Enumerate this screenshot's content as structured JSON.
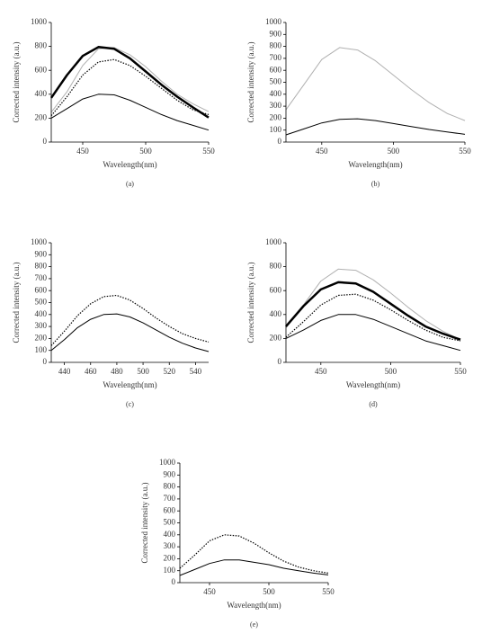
{
  "chart_data": [
    {
      "type": "line",
      "caption": "(a)",
      "xlabel": "Wavelength(nm)",
      "ylabel": "Corrected intensity (a.u.)",
      "x": [
        425,
        437.5,
        450,
        462.5,
        475,
        487.5,
        500,
        512.5,
        525,
        537.5,
        550
      ],
      "xlim": [
        425,
        550
      ],
      "xticks": [
        450,
        500,
        550
      ],
      "ylim": [
        0,
        1000
      ],
      "yticks": [
        0,
        200,
        400,
        600,
        800,
        1000
      ],
      "series": [
        {
          "color": "#b0b0b0",
          "line_style": "solid",
          "line_width": 1,
          "values": [
            250,
            420,
            640,
            780,
            790,
            730,
            630,
            510,
            400,
            320,
            255
          ]
        },
        {
          "color": "#000000",
          "line_style": "solid",
          "line_width": 2.5,
          "values": [
            370,
            560,
            720,
            795,
            780,
            700,
            590,
            480,
            380,
            290,
            205
          ]
        },
        {
          "color": "#000000",
          "line_style": "dotted",
          "line_width": 1.2,
          "values": [
            220,
            380,
            560,
            670,
            690,
            640,
            550,
            450,
            350,
            270,
            230
          ]
        },
        {
          "color": "#000000",
          "line_style": "solid",
          "line_width": 1,
          "values": [
            200,
            280,
            360,
            400,
            395,
            350,
            290,
            230,
            180,
            140,
            100
          ]
        }
      ]
    },
    {
      "type": "line",
      "caption": "(b)",
      "xlabel": "Wavelength(nm)",
      "ylabel": "Corrected intensity (a.u.)",
      "x": [
        425,
        437.5,
        450,
        462.5,
        475,
        487.5,
        500,
        512.5,
        525,
        537.5,
        550
      ],
      "xlim": [
        425,
        550
      ],
      "xticks": [
        450,
        500,
        550
      ],
      "ylim": [
        0,
        1000
      ],
      "yticks": [
        0,
        100,
        200,
        300,
        400,
        500,
        600,
        700,
        800,
        900,
        1000
      ],
      "series": [
        {
          "color": "#b0b0b0",
          "line_style": "solid",
          "line_width": 1,
          "values": [
            270,
            480,
            690,
            790,
            770,
            680,
            560,
            440,
            330,
            240,
            180
          ]
        },
        {
          "color": "#000000",
          "line_style": "solid",
          "line_width": 1,
          "values": [
            60,
            110,
            160,
            190,
            195,
            180,
            155,
            130,
            105,
            85,
            65
          ]
        }
      ]
    },
    {
      "type": "line",
      "caption": "(c)",
      "xlabel": "Wavelength(nm)",
      "ylabel": "Corrected intensity (a.u.)",
      "x": [
        430,
        440,
        450,
        460,
        470,
        480,
        490,
        500,
        510,
        520,
        530,
        540,
        550
      ],
      "xlim": [
        430,
        550
      ],
      "xticks": [
        440,
        460,
        480,
        500,
        520,
        540
      ],
      "ylim": [
        0,
        1000
      ],
      "yticks": [
        0,
        100,
        200,
        300,
        400,
        500,
        600,
        700,
        800,
        900,
        1000
      ],
      "series": [
        {
          "color": "#000000",
          "line_style": "dotted",
          "line_width": 1.2,
          "values": [
            140,
            260,
            390,
            490,
            550,
            560,
            520,
            450,
            370,
            300,
            240,
            200,
            170
          ]
        },
        {
          "color": "#000000",
          "line_style": "solid",
          "line_width": 1,
          "values": [
            100,
            190,
            290,
            360,
            400,
            405,
            380,
            330,
            270,
            210,
            160,
            120,
            90
          ]
        }
      ]
    },
    {
      "type": "line",
      "caption": "(d)",
      "xlabel": "Wavelength(nm)",
      "ylabel": "Corrected intensity (a.u.)",
      "x": [
        425,
        437.5,
        450,
        462.5,
        475,
        487.5,
        500,
        512.5,
        525,
        537.5,
        550
      ],
      "xlim": [
        425,
        550
      ],
      "xticks": [
        450,
        500,
        550
      ],
      "ylim": [
        0,
        1000
      ],
      "yticks": [
        0,
        200,
        400,
        600,
        800,
        1000
      ],
      "series": [
        {
          "color": "#b0b0b0",
          "line_style": "solid",
          "line_width": 1,
          "values": [
            290,
            480,
            680,
            780,
            770,
            690,
            580,
            460,
            350,
            260,
            190
          ]
        },
        {
          "color": "#000000",
          "line_style": "solid",
          "line_width": 2.5,
          "values": [
            300,
            470,
            610,
            670,
            660,
            590,
            490,
            390,
            300,
            240,
            190
          ]
        },
        {
          "color": "#000000",
          "line_style": "dotted",
          "line_width": 1.2,
          "values": [
            210,
            340,
            480,
            560,
            570,
            520,
            440,
            350,
            270,
            210,
            180
          ]
        },
        {
          "color": "#000000",
          "line_style": "solid",
          "line_width": 1,
          "values": [
            200,
            270,
            350,
            400,
            400,
            360,
            300,
            240,
            180,
            140,
            100
          ]
        }
      ]
    },
    {
      "type": "line",
      "caption": "(e)",
      "xlabel": "Wavelength(nm)",
      "ylabel": "Corrected intensity (a.u.)",
      "x": [
        425,
        437.5,
        450,
        462.5,
        475,
        487.5,
        500,
        512.5,
        525,
        537.5,
        550
      ],
      "xlim": [
        425,
        550
      ],
      "xticks": [
        450,
        500,
        550
      ],
      "ylim": [
        0,
        1000
      ],
      "yticks": [
        0,
        100,
        200,
        300,
        400,
        500,
        600,
        700,
        800,
        900,
        1000
      ],
      "series": [
        {
          "color": "#000000",
          "line_style": "dotted",
          "line_width": 1.2,
          "values": [
            120,
            230,
            350,
            400,
            390,
            330,
            250,
            180,
            130,
            100,
            80
          ]
        },
        {
          "color": "#000000",
          "line_style": "solid",
          "line_width": 1,
          "values": [
            60,
            110,
            160,
            190,
            190,
            170,
            150,
            120,
            100,
            80,
            65
          ]
        }
      ]
    }
  ]
}
